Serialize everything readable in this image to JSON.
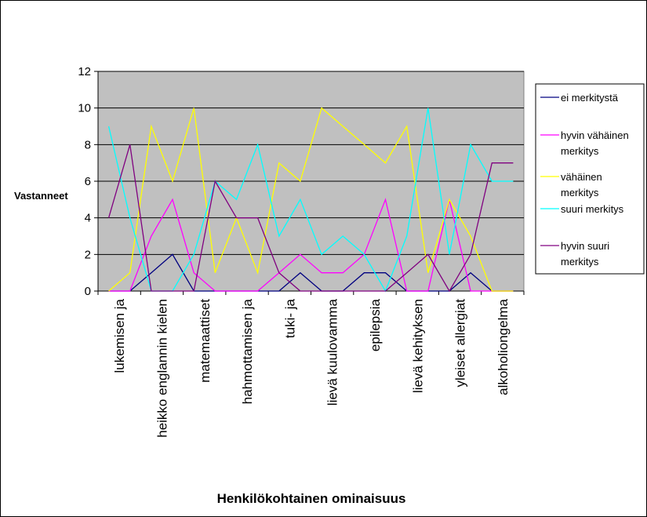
{
  "chart_data": {
    "type": "line",
    "title": "",
    "xlabel": "Henkilökohtainen ominaisuus",
    "ylabel": "Vastanneet",
    "ylim": [
      0,
      12
    ],
    "yticks": [
      "0",
      "2",
      "4",
      "6",
      "8",
      "10",
      "12"
    ],
    "grid": true,
    "legend_position": "right",
    "tick_labels": [
      "lukemisen ja",
      "heikko englannin kielen",
      "matemaattiset",
      "hahmottamisen ja",
      "tuki- ja",
      "lievä kuulovamma",
      "epilepsia",
      "lievä kehityksen",
      "yleiset allergiat",
      "alkoholiongelma"
    ],
    "x": [
      1,
      2,
      3,
      4,
      5,
      6,
      7,
      8,
      9,
      10,
      11,
      12,
      13,
      14,
      15,
      16,
      17,
      18,
      19,
      20
    ],
    "series": [
      {
        "name": "ei merkitystä",
        "color": "#000080",
        "legend_lines": [
          "ei merkitystä"
        ],
        "values": [
          0,
          0,
          1,
          2,
          0,
          0,
          0,
          0,
          0,
          1,
          0,
          0,
          1,
          1,
          0,
          0,
          0,
          1,
          0,
          0
        ]
      },
      {
        "name": "hyvin vähäinen merkitys",
        "color": "#ff00ff",
        "legend_lines": [
          "hyvin vähäinen",
          "merkitys"
        ],
        "values": [
          0,
          0,
          3,
          5,
          1,
          0,
          0,
          0,
          1,
          2,
          1,
          1,
          2,
          5,
          0,
          0,
          5,
          0,
          0,
          0
        ]
      },
      {
        "name": "vähäinen merkitys",
        "color": "#ffff00",
        "legend_lines": [
          "vähäinen",
          "merkitys"
        ],
        "values": [
          0,
          1,
          9,
          6,
          10,
          1,
          4,
          1,
          7,
          6,
          10,
          9,
          8,
          7,
          9,
          1,
          5,
          3,
          0,
          0
        ]
      },
      {
        "name": "suuri merkitys",
        "color": "#00ffff",
        "legend_lines": [
          "suuri merkitys"
        ],
        "values": [
          9,
          4,
          0,
          0,
          2,
          6,
          5,
          8,
          3,
          5,
          2,
          3,
          2,
          0,
          3,
          10,
          2,
          8,
          6,
          6
        ]
      },
      {
        "name": "hyvin suuri merkitys",
        "color": "#800080",
        "legend_lines": [
          "hyvin suuri",
          "merkitys"
        ],
        "values": [
          4,
          8,
          0,
          0,
          0,
          6,
          4,
          4,
          1,
          0,
          0,
          0,
          0,
          0,
          1,
          2,
          0,
          2,
          7,
          7
        ]
      }
    ]
  }
}
